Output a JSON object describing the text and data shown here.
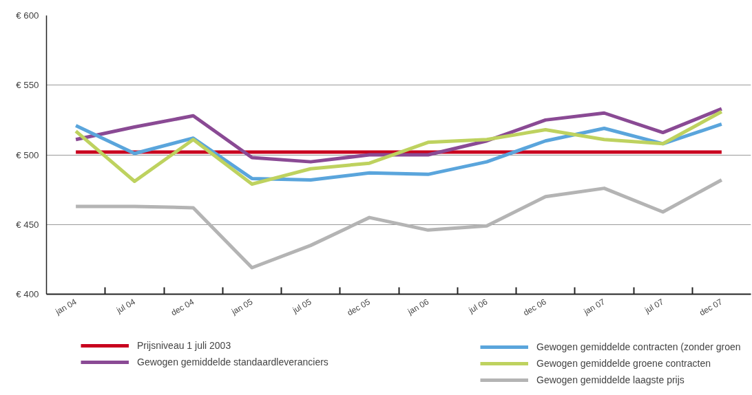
{
  "chart_data": {
    "type": "line",
    "categories": [
      "jan 04",
      "jul 04",
      "dec 04",
      "jan 05",
      "jul 05",
      "dec 05",
      "jan 06",
      "jul 06",
      "dec 06",
      "jan 07",
      "jul 07",
      "dec 07"
    ],
    "series": [
      {
        "name": "Prijsniveau 1 juli 2003",
        "color": "#c8001e",
        "values": [
          502,
          502,
          502,
          502,
          502,
          502,
          502,
          502,
          502,
          502,
          502,
          502
        ]
      },
      {
        "name": "Gewogen gemiddelde standaardleveranciers",
        "color": "#8a4a94",
        "values": [
          511,
          520,
          528,
          498,
          495,
          500,
          500,
          510,
          525,
          530,
          516,
          533
        ]
      },
      {
        "name": "Gewogen gemiddelde contracten (zonder groen",
        "color": "#5aa5dc",
        "values": [
          521,
          501,
          512,
          483,
          482,
          487,
          486,
          495,
          510,
          519,
          508,
          522
        ]
      },
      {
        "name": "Gewogen gemiddelde groene contracten",
        "color": "#bed25f",
        "values": [
          517,
          481,
          511,
          479,
          490,
          494,
          509,
          511,
          518,
          511,
          508,
          531
        ]
      },
      {
        "name": "Gewogen gemiddelde laagste prijs",
        "color": "#b4b4b4",
        "values": [
          463,
          463,
          462,
          419,
          435,
          455,
          446,
          449,
          470,
          476,
          459,
          482
        ]
      }
    ],
    "ylim": [
      400,
      600
    ],
    "yticks": [
      {
        "value": 400,
        "label": "€ 400"
      },
      {
        "value": 450,
        "label": "€ 450"
      },
      {
        "value": 500,
        "label": "€ 500"
      },
      {
        "value": 550,
        "label": "€ 550"
      },
      {
        "value": 600,
        "label": "€ 600"
      }
    ],
    "grid": "y",
    "legend": "bottom",
    "marker": "none",
    "line_style": "solid"
  }
}
